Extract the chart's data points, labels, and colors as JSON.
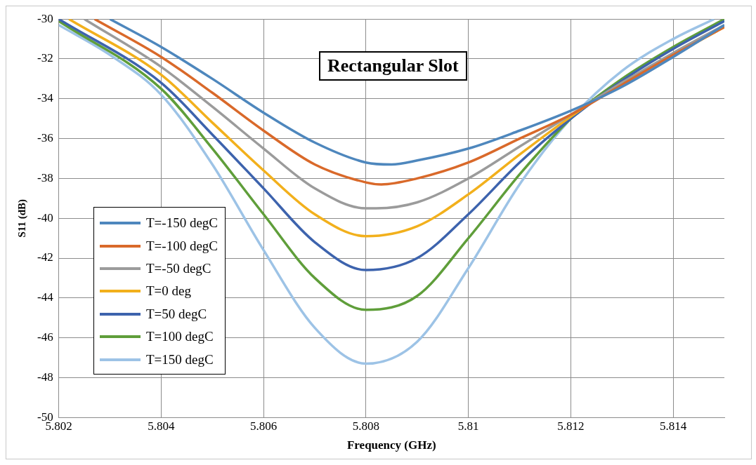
{
  "chart_data": {
    "type": "line",
    "title": "Rectangular Slot",
    "xlabel": "Frequency (GHz)",
    "ylabel": "S11 (dB)",
    "xlim": [
      5.802,
      5.815
    ],
    "xticks": [
      5.802,
      5.804,
      5.806,
      5.808,
      5.81,
      5.812,
      5.814
    ],
    "ylim": [
      -50,
      -30
    ],
    "yticks": [
      -50,
      -48,
      -46,
      -44,
      -42,
      -40,
      -38,
      -36,
      -34,
      -32,
      -30
    ],
    "grid": true,
    "legend": "bottom left",
    "marker": "none",
    "line_style": "solid",
    "series": [
      {
        "name": "T=-150 degC",
        "color": "#4e87bd",
        "x": [
          5.803,
          5.804,
          5.805,
          5.806,
          5.807,
          5.808,
          5.8085,
          5.809,
          5.81,
          5.811,
          5.812,
          5.813,
          5.814,
          5.815
        ],
        "values": [
          -30.0,
          -31.4,
          -33.0,
          -34.7,
          -36.2,
          -37.2,
          -37.3,
          -37.1,
          -36.5,
          -35.6,
          -34.6,
          -33.4,
          -31.9,
          -30.3
        ]
      },
      {
        "name": "T=-100 degC",
        "color": "#d9692a",
        "x": [
          5.8027,
          5.804,
          5.805,
          5.806,
          5.807,
          5.808,
          5.8083,
          5.809,
          5.81,
          5.811,
          5.812,
          5.813,
          5.814,
          5.815
        ],
        "values": [
          -30.0,
          -31.9,
          -33.7,
          -35.6,
          -37.3,
          -38.2,
          -38.3,
          -38.0,
          -37.2,
          -36.0,
          -34.8,
          -33.3,
          -31.8,
          -30.4
        ]
      },
      {
        "name": "T=-50 degC",
        "color": "#9b9b9b",
        "x": [
          5.8025,
          5.804,
          5.805,
          5.806,
          5.807,
          5.808,
          5.8082,
          5.809,
          5.81,
          5.811,
          5.812,
          5.813,
          5.814,
          5.815
        ],
        "values": [
          -30.0,
          -32.4,
          -34.4,
          -36.5,
          -38.5,
          -39.5,
          -39.5,
          -39.2,
          -38.0,
          -36.4,
          -34.8,
          -33.2,
          -31.7,
          -30.3
        ]
      },
      {
        "name": "T=0 deg",
        "color": "#f2b01c",
        "x": [
          5.8022,
          5.804,
          5.805,
          5.806,
          5.807,
          5.808,
          5.809,
          5.81,
          5.811,
          5.812,
          5.813,
          5.814,
          5.815
        ],
        "values": [
          -30.0,
          -32.8,
          -35.2,
          -37.6,
          -39.8,
          -40.9,
          -40.4,
          -38.8,
          -36.8,
          -34.9,
          -33.2,
          -31.8,
          -30.4
        ]
      },
      {
        "name": "T=50 degC",
        "color": "#3d63ad",
        "x": [
          5.802,
          5.804,
          5.805,
          5.806,
          5.807,
          5.808,
          5.809,
          5.81,
          5.811,
          5.812,
          5.813,
          5.814,
          5.815
        ],
        "values": [
          -30.0,
          -33.2,
          -35.8,
          -38.5,
          -41.2,
          -42.6,
          -42.0,
          -39.8,
          -37.2,
          -35.0,
          -33.1,
          -31.5,
          -30.1
        ]
      },
      {
        "name": "T=100 degC",
        "color": "#5f9e3a",
        "x": [
          5.802,
          5.804,
          5.805,
          5.806,
          5.807,
          5.808,
          5.809,
          5.81,
          5.811,
          5.812,
          5.813,
          5.814,
          5.815
        ],
        "values": [
          -30.1,
          -33.5,
          -36.5,
          -39.8,
          -43.0,
          -44.6,
          -43.9,
          -41.0,
          -37.8,
          -35.0,
          -33.0,
          -31.4,
          -30.0
        ]
      },
      {
        "name": "T=150 degC",
        "color": "#9dc3e6",
        "x": [
          5.802,
          5.803,
          5.804,
          5.805,
          5.806,
          5.807,
          5.808,
          5.809,
          5.81,
          5.811,
          5.812,
          5.813,
          5.814,
          5.8148
        ],
        "values": [
          -30.3,
          -31.8,
          -33.8,
          -37.3,
          -41.6,
          -45.5,
          -47.3,
          -46.2,
          -42.5,
          -38.3,
          -35.0,
          -32.6,
          -31.0,
          -30.0
        ]
      }
    ]
  }
}
